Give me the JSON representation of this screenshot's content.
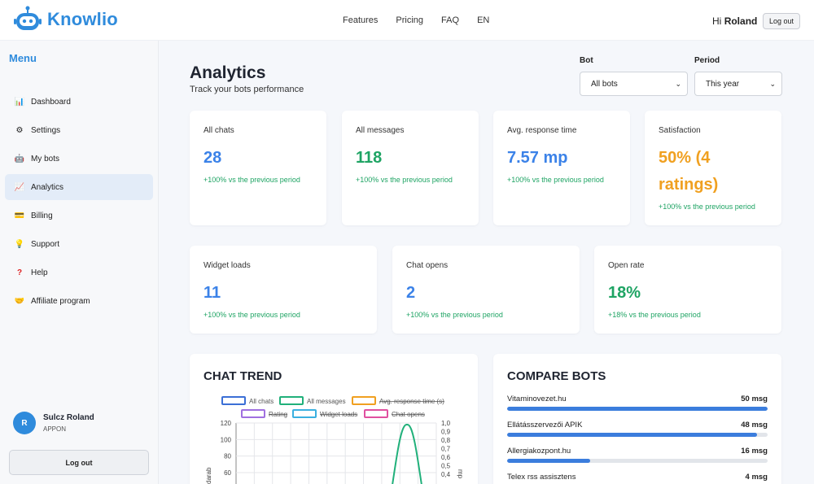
{
  "brand": {
    "name": "Knowlio",
    "color": "#2f8bdc"
  },
  "nav": {
    "features": "Features",
    "pricing": "Pricing",
    "faq": "FAQ",
    "lang": "EN"
  },
  "header": {
    "greeting": "Hi",
    "username": "Roland",
    "logout": "Log out"
  },
  "sidebar": {
    "title": "Menu",
    "items": [
      {
        "label": "Dashboard",
        "icon": "bar-chart-icon"
      },
      {
        "label": "Settings",
        "icon": "gear-icon"
      },
      {
        "label": "My bots",
        "icon": "robot-icon"
      },
      {
        "label": "Analytics",
        "icon": "trend-icon",
        "active": true
      },
      {
        "label": "Billing",
        "icon": "credit-card-icon"
      },
      {
        "label": "Support",
        "icon": "lightbulb-icon"
      },
      {
        "label": "Help",
        "icon": "question-icon"
      },
      {
        "label": "Affiliate program",
        "icon": "handshake-icon"
      }
    ],
    "user": {
      "initial": "R",
      "name": "Sulcz Roland",
      "org": "APPON"
    },
    "logout": "Log out"
  },
  "page": {
    "title": "Analytics",
    "subtitle": "Track your bots performance"
  },
  "filters": {
    "bot": {
      "label": "Bot",
      "value": "All bots"
    },
    "period": {
      "label": "Period",
      "value": "This year"
    }
  },
  "stats_row1": [
    {
      "label": "All chats",
      "value": "28",
      "delta": "+100% vs the previous period",
      "color": "#3b82e8"
    },
    {
      "label": "All messages",
      "value": "118",
      "delta": "+100% vs the previous period",
      "color": "#1fa464"
    },
    {
      "label": "Avg. response time",
      "value": "7.57 mp",
      "delta": "+100% vs the previous period",
      "color": "#3b82e8"
    },
    {
      "label": "Satisfaction",
      "value": "50% (4 ratings)",
      "delta": "+100% vs the previous period",
      "color": "#f0a020"
    }
  ],
  "stats_row2": [
    {
      "label": "Widget loads",
      "value": "11",
      "delta": "+100% vs the previous period",
      "color": "#3b82e8"
    },
    {
      "label": "Chat opens",
      "value": "2",
      "delta": "+100% vs the previous period",
      "color": "#3b82e8"
    },
    {
      "label": "Open rate",
      "value": "18%",
      "delta": "+18% vs the previous period",
      "color": "#1fa464"
    }
  ],
  "chart_trend": {
    "title": "CHAT TREND"
  },
  "chart_data": {
    "type": "line",
    "legend": [
      {
        "name": "All chats",
        "color": "#3b6fd6",
        "hidden": false
      },
      {
        "name": "All messages",
        "color": "#20b07a",
        "hidden": false
      },
      {
        "name": "Avg. response time (s)",
        "color": "#f0a020",
        "hidden": true
      },
      {
        "name": "Rating",
        "color": "#a070e0",
        "hidden": true
      },
      {
        "name": "Widget loads",
        "color": "#3ab0e0",
        "hidden": true
      },
      {
        "name": "Chat opens",
        "color": "#e050a0",
        "hidden": true
      }
    ],
    "ylabel": "darab",
    "y2label": "mp",
    "y_ticks": [
      "120",
      "100",
      "80",
      "60"
    ],
    "y2_ticks": [
      "1,0",
      "0,9",
      "0,8",
      "0,7",
      "0,6",
      "0,5",
      "0,4"
    ],
    "ylim": [
      0,
      120
    ],
    "visible_peak": 118
  },
  "compare": {
    "title": "COMPARE BOTS",
    "rows": [
      {
        "name": "Vitaminovezet.hu",
        "value": "50 msg",
        "ratio": 1.0
      },
      {
        "name": "Ellátásszervezői APIK",
        "value": "48 msg",
        "ratio": 0.96
      },
      {
        "name": "Allergiakozpont.hu",
        "value": "16 msg",
        "ratio": 0.32
      },
      {
        "name": "Telex rss assisztens",
        "value": "4 msg",
        "ratio": 0.08
      }
    ]
  }
}
